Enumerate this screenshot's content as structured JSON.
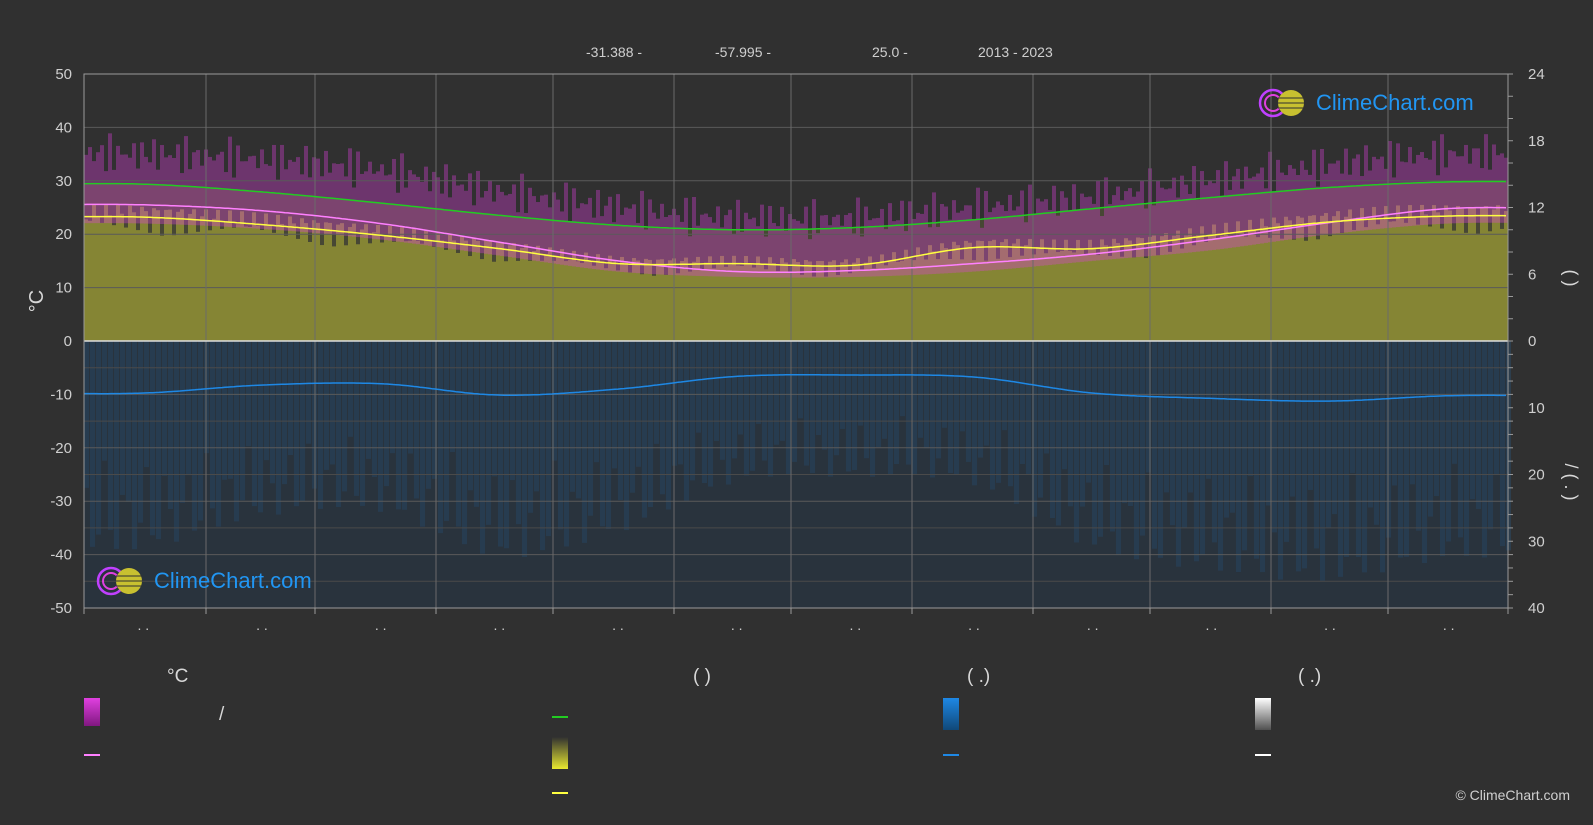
{
  "header": {
    "lat": "-31.388 -",
    "lon": "-57.995 -",
    "elev": "25.0 -",
    "years": "2013 - 2023"
  },
  "logo_text": "ClimeChart.com",
  "copyright": "© ClimeChart.com",
  "legend": {
    "col1_header": "°C",
    "col1_slash": "/",
    "col2_header": "(          )",
    "col3_header": "(   .)",
    "col4_header": "(   .)"
  },
  "colors": {
    "background": "#303030",
    "temp_range": "#e040e0",
    "temp_mean": "#ff80ff",
    "daylight": "#22cc22",
    "sunshine": "#e8e830",
    "sunshine_line": "#ffff40",
    "precip": "#1e88e5",
    "snow": "#ffffff"
  },
  "chart_data": {
    "type": "line",
    "title": "",
    "x_tick_labels": [
      ". .",
      ". .",
      ". .",
      ". .",
      ". .",
      ". .",
      ". .",
      ". .",
      ". .",
      ". .",
      ". .",
      ". ."
    ],
    "ylabel_left": "°C",
    "ylim_left": [
      -50,
      50
    ],
    "yticks_left": [
      50,
      40,
      30,
      20,
      10,
      0,
      -10,
      -20,
      -30,
      -40,
      -50
    ],
    "ylim_right_top": [
      0,
      24
    ],
    "yticks_right_top": [
      24,
      18,
      12,
      6,
      0
    ],
    "ylabel_right_top": "(   )",
    "ylim_right_bottom": [
      0,
      40
    ],
    "yticks_right_bottom": [
      0,
      10,
      20,
      30,
      40
    ],
    "ylabel_right_bottom": "/     (  .  )",
    "grid": true,
    "months": [
      1,
      2,
      3,
      4,
      5,
      6,
      7,
      8,
      9,
      10,
      11,
      12
    ],
    "series": [
      {
        "key": "daylight",
        "axis": "right_top",
        "values": [
          14.1,
          13.4,
          12.4,
          11.3,
          10.4,
          10.0,
          10.2,
          10.9,
          11.9,
          12.9,
          13.8,
          14.3
        ]
      },
      {
        "key": "temp_mean",
        "axis": "left",
        "values": [
          25.5,
          24.4,
          22.0,
          18.5,
          15.0,
          13.0,
          13.2,
          14.5,
          16.3,
          19.0,
          22.2,
          24.8
        ]
      },
      {
        "key": "sunshine",
        "axis": "left",
        "values": [
          23.2,
          21.8,
          19.8,
          17.3,
          14.5,
          14.5,
          14.2,
          17.5,
          17.3,
          19.8,
          22.3,
          23.4
        ]
      },
      {
        "key": "precip",
        "axis": "right_bottom",
        "values": [
          7.8,
          6.6,
          6.4,
          8.1,
          7.2,
          5.3,
          5.1,
          5.4,
          7.8,
          8.6,
          9.0,
          8.2
        ]
      }
    ],
    "temp_band_top": [
      35,
      34,
      32,
      28,
      25,
      23,
      23,
      25,
      27,
      30,
      33,
      35
    ],
    "temp_band_bottom": [
      27,
      26,
      24,
      21,
      18,
      17,
      17,
      18,
      20,
      22,
      25,
      27
    ]
  }
}
